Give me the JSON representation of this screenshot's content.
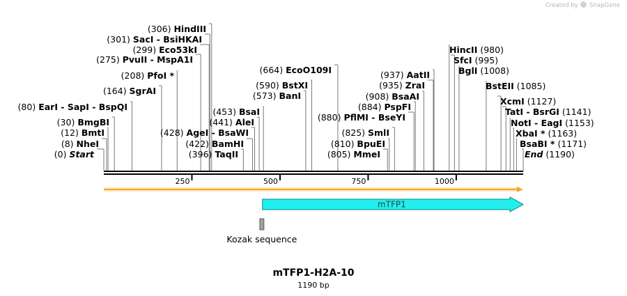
{
  "app": {
    "credit_prefix": "Created by",
    "credit_brand": "SnapGene"
  },
  "map": {
    "name": "mTFP1-H2A-10",
    "length_label": "1190 bp",
    "length_bp": 1190,
    "ticks": [
      {
        "bp": 250,
        "label": "250"
      },
      {
        "bp": 500,
        "label": "500"
      },
      {
        "bp": 750,
        "label": "750"
      },
      {
        "bp": 1000,
        "label": "1000"
      }
    ],
    "sites": [
      {
        "name": "Start",
        "pos": 0,
        "pos_label": "(0)",
        "italic": true,
        "side": "left"
      },
      {
        "name": "NheI",
        "pos": 8,
        "pos_label": "(8)",
        "side": "left"
      },
      {
        "name": "BmtI",
        "pos": 12,
        "pos_label": "(12)",
        "side": "left"
      },
      {
        "name": "BmgBI",
        "pos": 30,
        "pos_label": "(30)",
        "side": "left"
      },
      {
        "name": "EarI  - SapI  - BspQI",
        "pos": 80,
        "pos_label": "(80)",
        "side": "left"
      },
      {
        "name": "SgrAI",
        "pos": 164,
        "pos_label": "(164)",
        "side": "left"
      },
      {
        "name": "PfoI *",
        "pos": 208,
        "pos_label": "(208)",
        "side": "left"
      },
      {
        "name": "PvuII  - MspA1I",
        "pos": 275,
        "pos_label": "(275)",
        "side": "left"
      },
      {
        "name": "Eco53kI",
        "pos": 299,
        "pos_label": "(299)",
        "side": "left"
      },
      {
        "name": "SacI  - BsiHKAI",
        "pos": 301,
        "pos_label": "(301)",
        "side": "left"
      },
      {
        "name": "HindIII",
        "pos": 306,
        "pos_label": "(306)",
        "side": "left"
      },
      {
        "name": "TaqII",
        "pos": 396,
        "pos_label": "(396)",
        "side": "left"
      },
      {
        "name": "BamHI",
        "pos": 422,
        "pos_label": "(422)",
        "side": "left"
      },
      {
        "name": "AgeI  - BsaWI",
        "pos": 428,
        "pos_label": "(428)",
        "side": "left"
      },
      {
        "name": "AleI",
        "pos": 441,
        "pos_label": "(441)",
        "side": "left"
      },
      {
        "name": "BsaI",
        "pos": 453,
        "pos_label": "(453)",
        "side": "left"
      },
      {
        "name": "BanI",
        "pos": 573,
        "pos_label": "(573)",
        "side": "left"
      },
      {
        "name": "BstXI",
        "pos": 590,
        "pos_label": "(590)",
        "side": "left"
      },
      {
        "name": "EcoO109I",
        "pos": 664,
        "pos_label": "(664)",
        "side": "left"
      },
      {
        "name": "MmeI",
        "pos": 805,
        "pos_label": "(805)",
        "side": "left"
      },
      {
        "name": "BpuEI",
        "pos": 810,
        "pos_label": "(810)",
        "side": "left"
      },
      {
        "name": "SmlI",
        "pos": 825,
        "pos_label": "(825)",
        "side": "left"
      },
      {
        "name": "PflMI  - BseYI",
        "pos": 880,
        "pos_label": "(880)",
        "side": "left"
      },
      {
        "name": "PspFI",
        "pos": 884,
        "pos_label": "(884)",
        "side": "left"
      },
      {
        "name": "BsaAI",
        "pos": 908,
        "pos_label": "(908)",
        "side": "left"
      },
      {
        "name": "ZraI",
        "pos": 935,
        "pos_label": "(935)",
        "side": "left"
      },
      {
        "name": "AatII",
        "pos": 937,
        "pos_label": "(937)",
        "side": "left"
      },
      {
        "name": "HincII",
        "pos": 980,
        "pos_label": "(980)",
        "side": "right"
      },
      {
        "name": "SfcI",
        "pos": 995,
        "pos_label": "(995)",
        "side": "right"
      },
      {
        "name": "BglI",
        "pos": 1008,
        "pos_label": "(1008)",
        "side": "right"
      },
      {
        "name": "BstEII",
        "pos": 1085,
        "pos_label": "(1085)",
        "side": "right"
      },
      {
        "name": "XcmI",
        "pos": 1127,
        "pos_label": "(1127)",
        "side": "right"
      },
      {
        "name": "TatI  - BsrGI",
        "pos": 1141,
        "pos_label": "(1141)",
        "side": "right"
      },
      {
        "name": "NotI  - EagI",
        "pos": 1153,
        "pos_label": "(1153)",
        "side": "right"
      },
      {
        "name": "XbaI *",
        "pos": 1163,
        "pos_label": "(1163)",
        "side": "right"
      },
      {
        "name": "BsaBI *",
        "pos": 1171,
        "pos_label": "(1171)",
        "side": "right"
      },
      {
        "name": "End",
        "pos": 1190,
        "pos_label": "(1190)",
        "italic": true,
        "side": "right"
      }
    ],
    "features": [
      {
        "name": "mTFP1",
        "start": 450,
        "end": 1190,
        "color": "#22eeee",
        "direction": "forward"
      },
      {
        "name": "Kozak sequence",
        "start": 444,
        "end": 453,
        "color": "#9aa3a8"
      }
    ],
    "orf": {
      "start": 0,
      "end": 1190,
      "color": "#f5a623"
    }
  }
}
